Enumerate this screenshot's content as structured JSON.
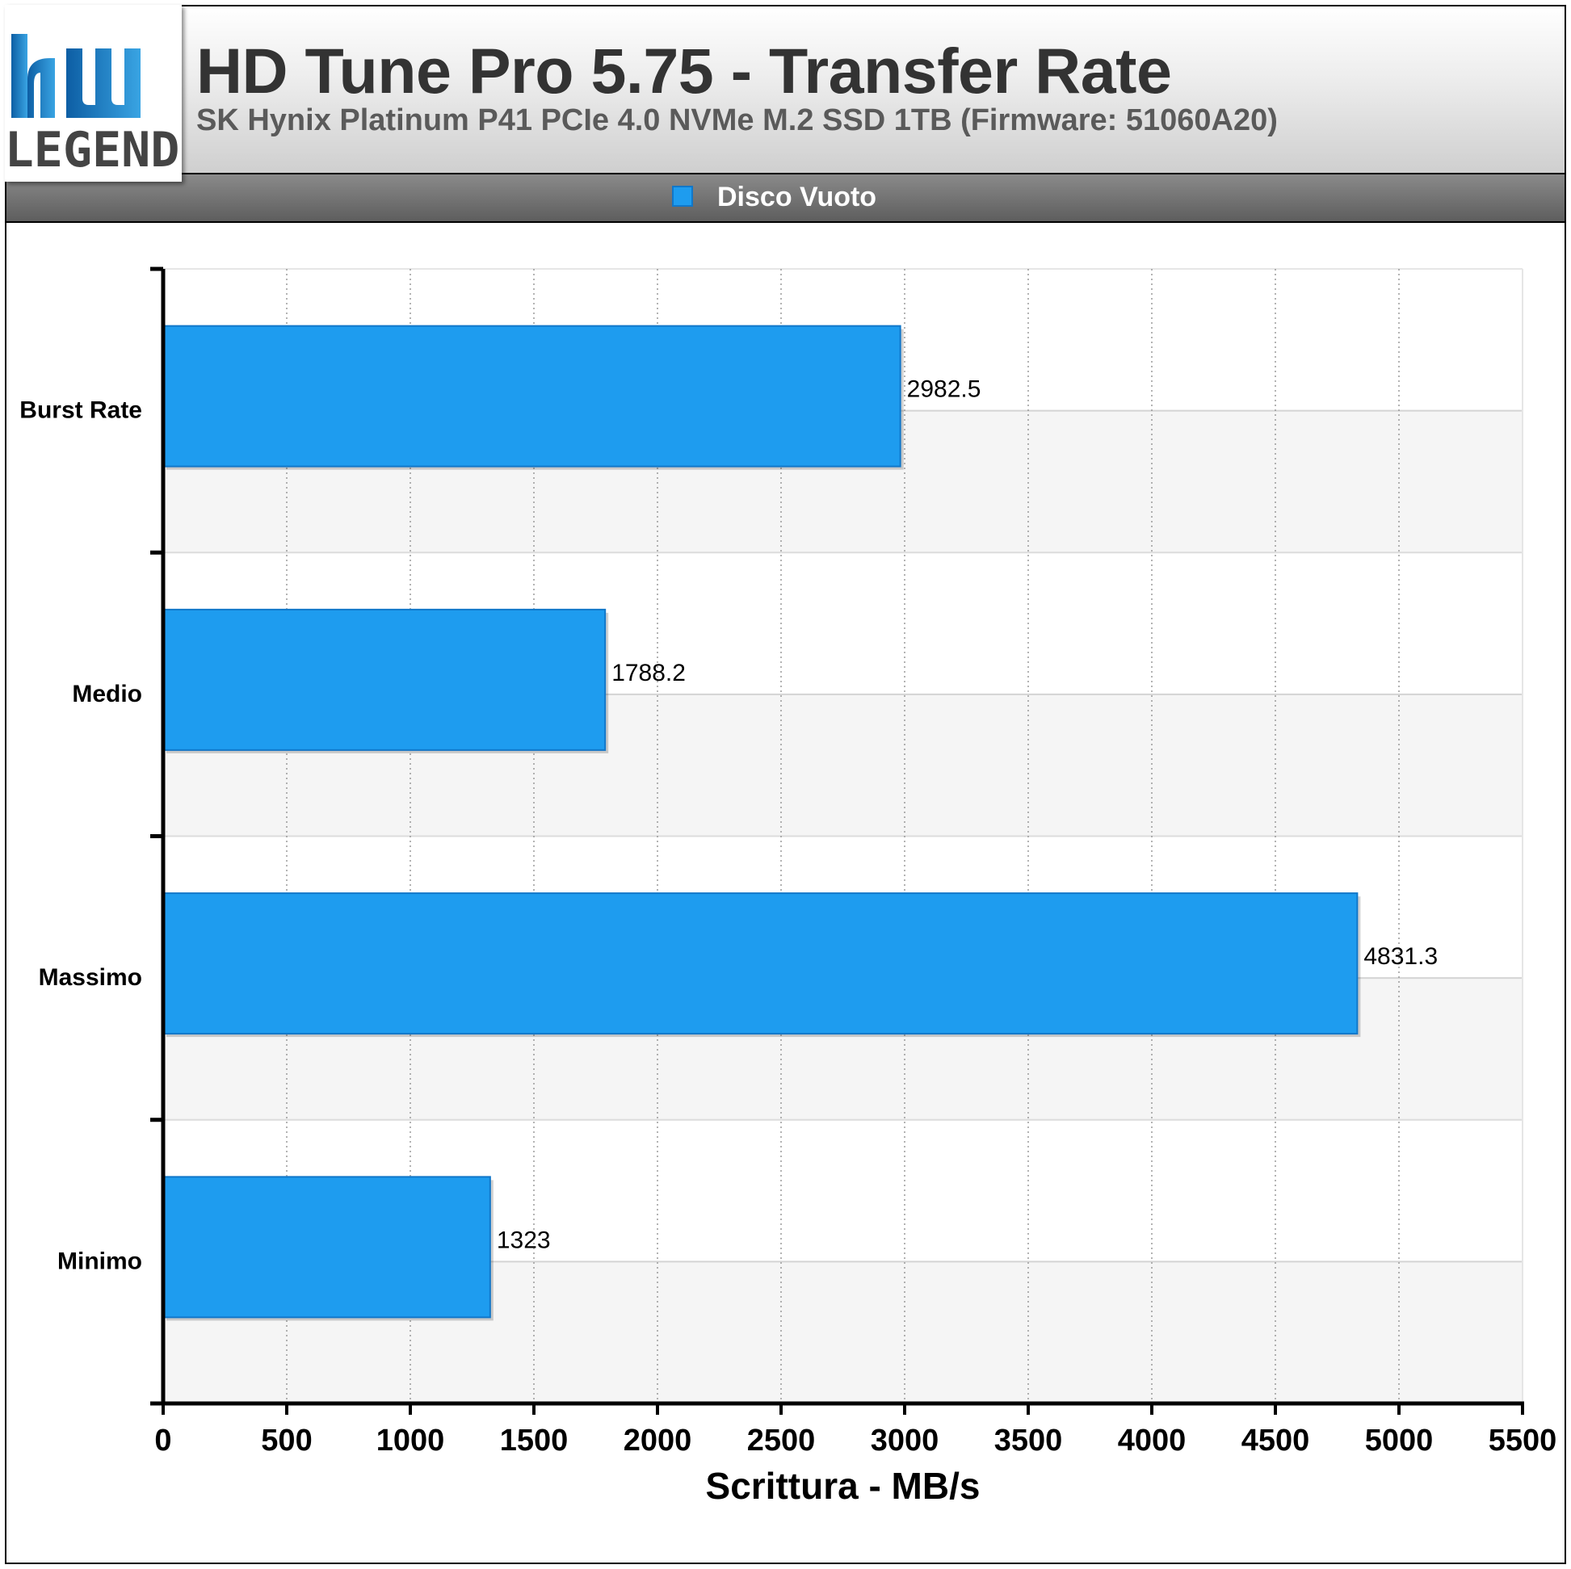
{
  "header": {
    "title": "HD Tune Pro 5.75 - Transfer Rate",
    "subtitle": "SK Hynix Platinum P41 PCIe 4.0 NVMe M.2 SSD 1TB (Firmware: 51060A20)",
    "logo_text": "LEGEND"
  },
  "colors": {
    "bar": "#1e9cef",
    "bar_border": "#1177c9",
    "band_alt": "#f5f5f5",
    "logo_blue": "#1a74b8"
  },
  "chart_data": {
    "type": "bar",
    "orientation": "horizontal",
    "categories": [
      "Burst Rate",
      "Medio",
      "Massimo",
      "Minimo"
    ],
    "series": [
      {
        "name": "Disco Vuoto",
        "values": [
          2982.5,
          1788.2,
          4831.3,
          1323
        ]
      }
    ],
    "value_labels": [
      "2982.5",
      "1788.2",
      "4831.3",
      "1323"
    ],
    "xlabel": "Scrittura - MB/s",
    "xlim": [
      0,
      5500
    ],
    "xticks": [
      "0",
      "500",
      "1000",
      "1500",
      "2000",
      "2500",
      "3000",
      "3500",
      "4000",
      "4500",
      "5000",
      "5500"
    ],
    "grid": true,
    "legend_position": "top"
  }
}
